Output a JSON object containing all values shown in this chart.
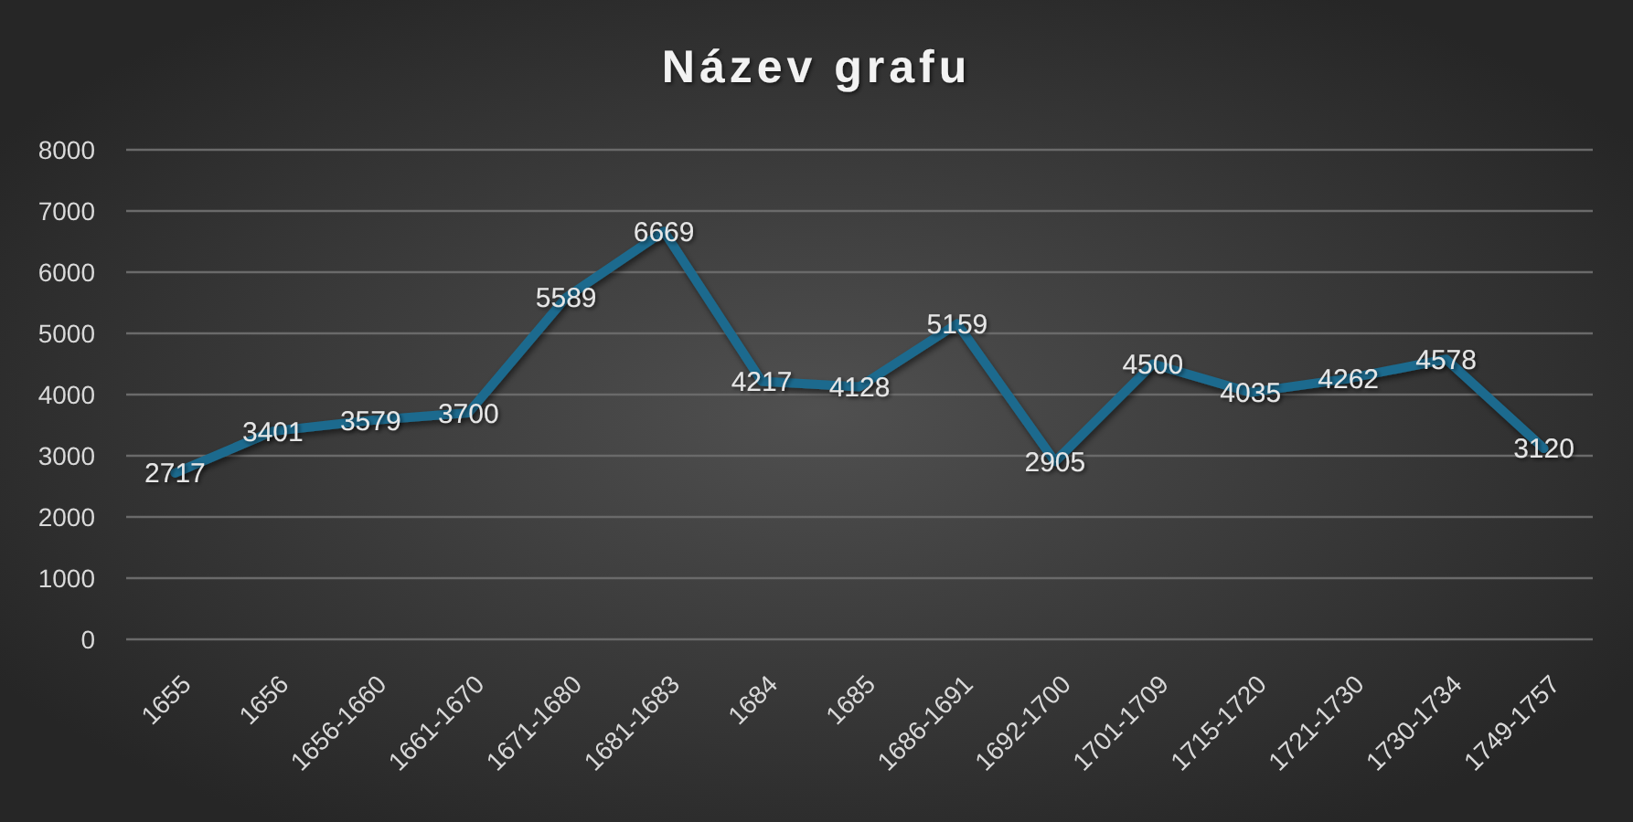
{
  "chart_data": {
    "type": "line",
    "title": "Název grafu",
    "categories": [
      "1655",
      "1656",
      "1656-1660",
      "1661-1670",
      "1671-1680",
      "1681-1683",
      "1684",
      "1685",
      "1686-1691",
      "1692-1700",
      "1701-1709",
      "1715-1720",
      "1721-1730",
      "1730-1734",
      "1749-1757"
    ],
    "series": [
      {
        "color": "#1c6b8e",
        "values": [
          2717,
          3401,
          3579,
          3700,
          5589,
          6669,
          4217,
          4128,
          5159,
          2905,
          4500,
          4035,
          4262,
          4578,
          3120
        ]
      }
    ],
    "ylim": [
      0,
      8000
    ],
    "yticks": [
      0,
      1000,
      2000,
      3000,
      4000,
      5000,
      6000,
      7000,
      8000
    ],
    "grid": "y",
    "data_labels": true
  }
}
